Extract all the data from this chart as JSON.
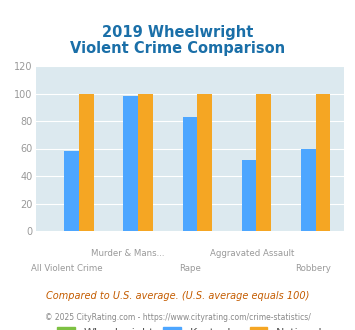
{
  "title_line1": "2019 Wheelwright",
  "title_line2": "Violent Crime Comparison",
  "categories": [
    "All Violent Crime",
    "Murder & Mans...",
    "Rape",
    "Aggravated Assault",
    "Robbery"
  ],
  "wheelwright_values": [
    0,
    0,
    0,
    0,
    0
  ],
  "kentucky_values": [
    58,
    98,
    83,
    52,
    60
  ],
  "national_values": [
    100,
    100,
    100,
    100,
    100
  ],
  "bar_colors": {
    "wheelwright": "#7dc142",
    "kentucky": "#4da6ff",
    "national": "#f5a623"
  },
  "ylim": [
    0,
    120
  ],
  "yticks": [
    0,
    20,
    40,
    60,
    80,
    100,
    120
  ],
  "title_color": "#1a6fa8",
  "title_fontsize": 10.5,
  "axis_label_color": "#999999",
  "legend_label_color": "#555555",
  "bg_color": "#dce9ef",
  "footer_text1": "Compared to U.S. average. (U.S. average equals 100)",
  "footer_text2": "© 2025 CityRating.com - https://www.cityrating.com/crime-statistics/",
  "footer_color1": "#c45c00",
  "footer_color2": "#888888"
}
